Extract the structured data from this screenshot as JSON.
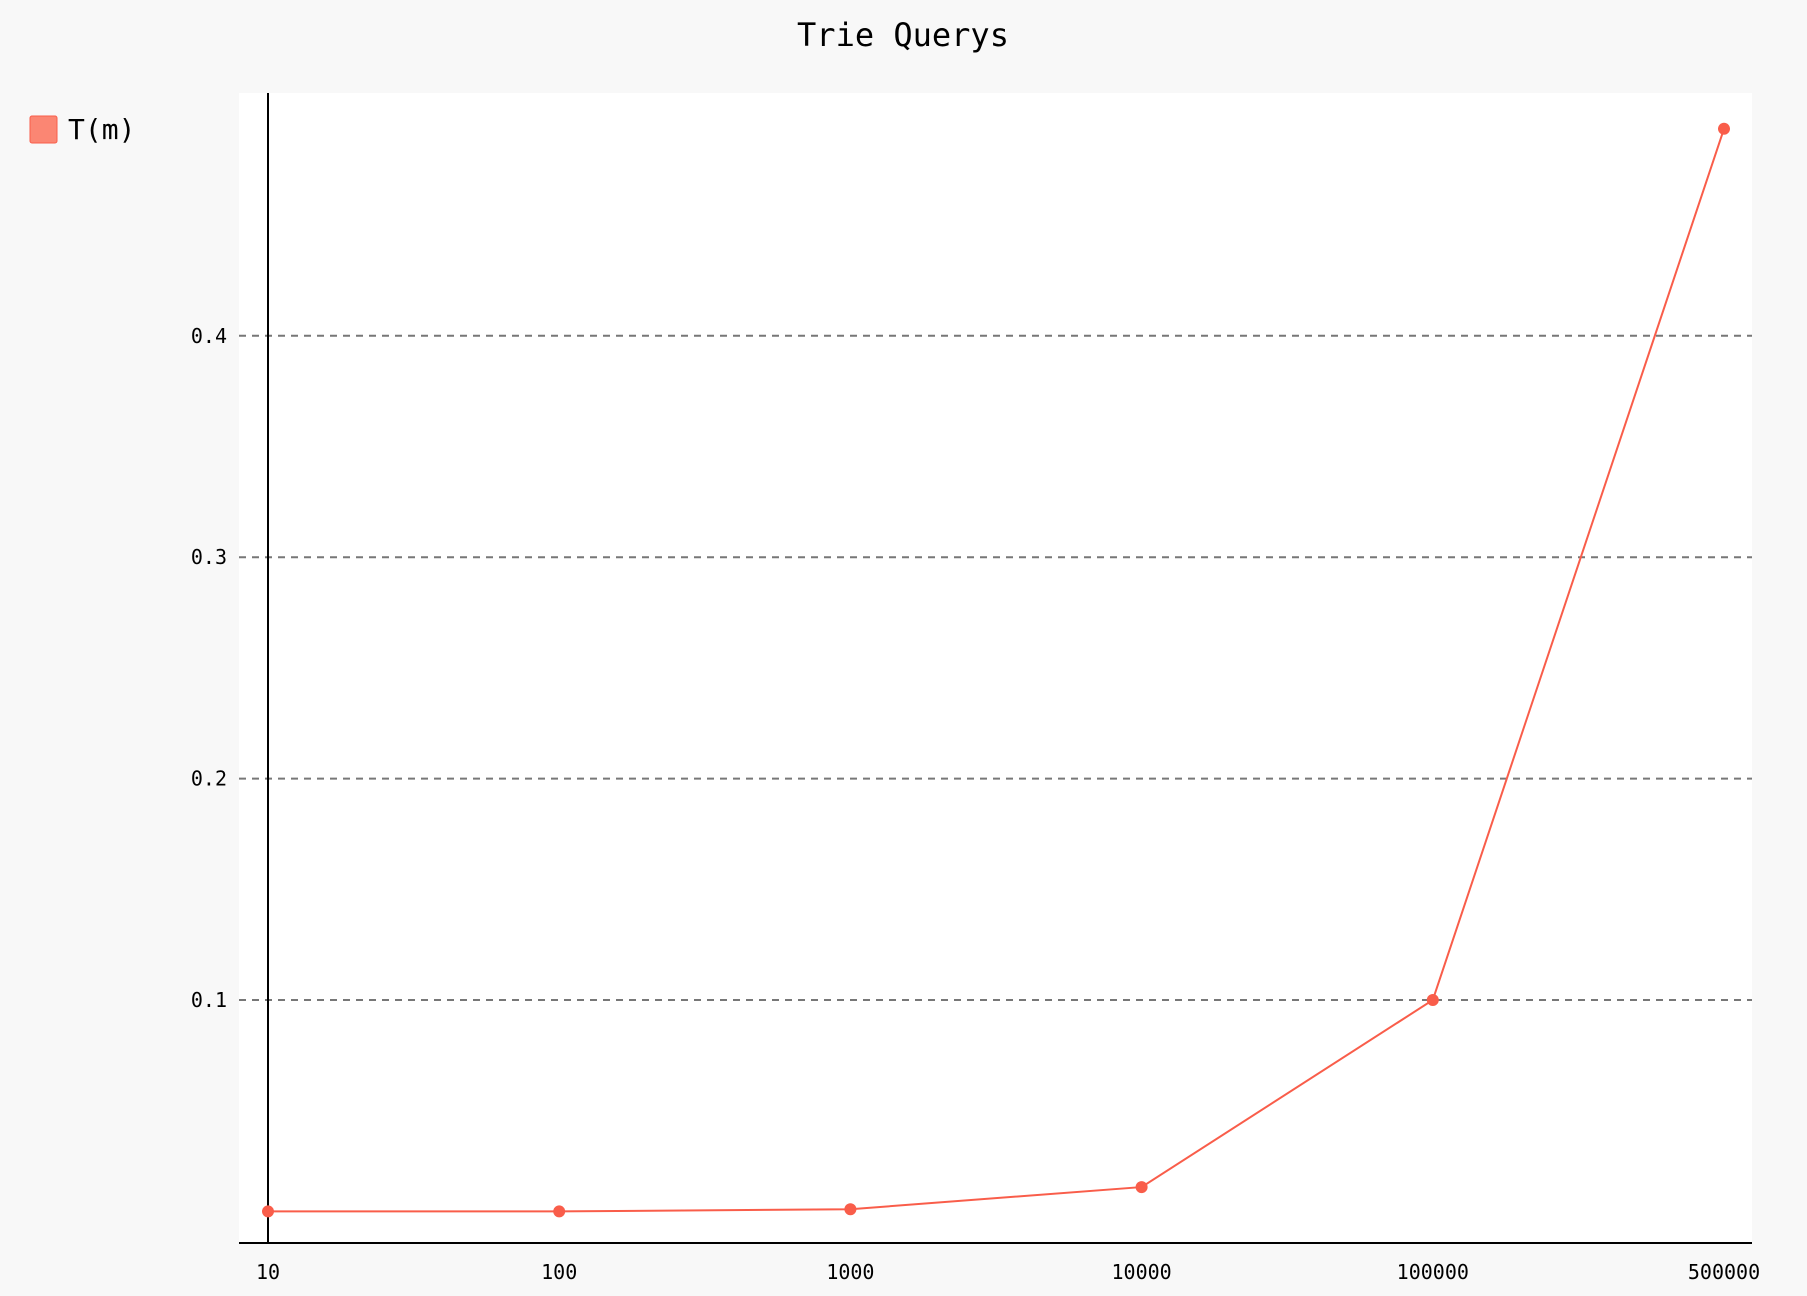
{
  "colors": {
    "page_background": "#f8f8f8",
    "plot_background": "#ffffff",
    "series": "#f95d4a",
    "legend_swatch": "#fb8673",
    "gridline": "#777777",
    "axis": "#000000",
    "text": "#000000"
  },
  "chart_data": {
    "type": "line",
    "title": "Trie Querys",
    "xlabel": "",
    "ylabel": "",
    "categories": [
      "10",
      "100",
      "1000",
      "10000",
      "100000",
      "500000"
    ],
    "y_ticks": [
      "0.1",
      "0.2",
      "0.3",
      "0.4"
    ],
    "ylim": [
      0,
      0.52
    ],
    "grid": "horizontal-dashed",
    "legend_placement": "top-left-outside",
    "series": [
      {
        "name": "T(m)",
        "values": [
          0.0045,
          0.0045,
          0.0055,
          0.0155,
          0.1,
          0.4935
        ]
      }
    ]
  }
}
